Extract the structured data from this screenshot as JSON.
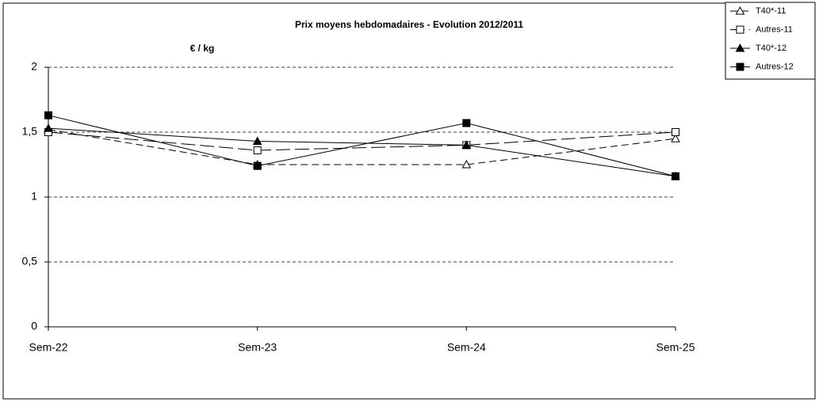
{
  "chart_data": {
    "type": "line",
    "title": "Prix moyens hebdomadaires - Evolution  2012/2011",
    "y_label": "€ / kg",
    "categories": [
      "Sem-22",
      "Sem-23",
      "Sem-24",
      "Sem-25"
    ],
    "ylim": [
      0,
      2
    ],
    "yticks": [
      0,
      {
        "value": 0.5,
        "label": "0,5"
      },
      1,
      {
        "value": 1.5,
        "label": "1,5"
      },
      2
    ],
    "grid": true,
    "legend": "right",
    "series": [
      {
        "name": "T40*-11",
        "color": "#000000",
        "marker": "triangle-open",
        "dash": "9,5",
        "values": [
          1.52,
          1.25,
          1.25,
          1.45
        ]
      },
      {
        "name": "Autres-11",
        "color": "#000000",
        "marker": "square-open",
        "dash": "18,6",
        "values": [
          1.5,
          1.36,
          1.4,
          1.5
        ]
      },
      {
        "name": "T40*-12",
        "color": "#000000",
        "marker": "triangle",
        "dash": "none",
        "values": [
          1.53,
          1.43,
          1.4,
          1.16
        ]
      },
      {
        "name": "Autres-12",
        "color": "#000000",
        "marker": "square",
        "dash": "none",
        "values": [
          1.63,
          1.24,
          1.57,
          1.16
        ]
      }
    ]
  }
}
